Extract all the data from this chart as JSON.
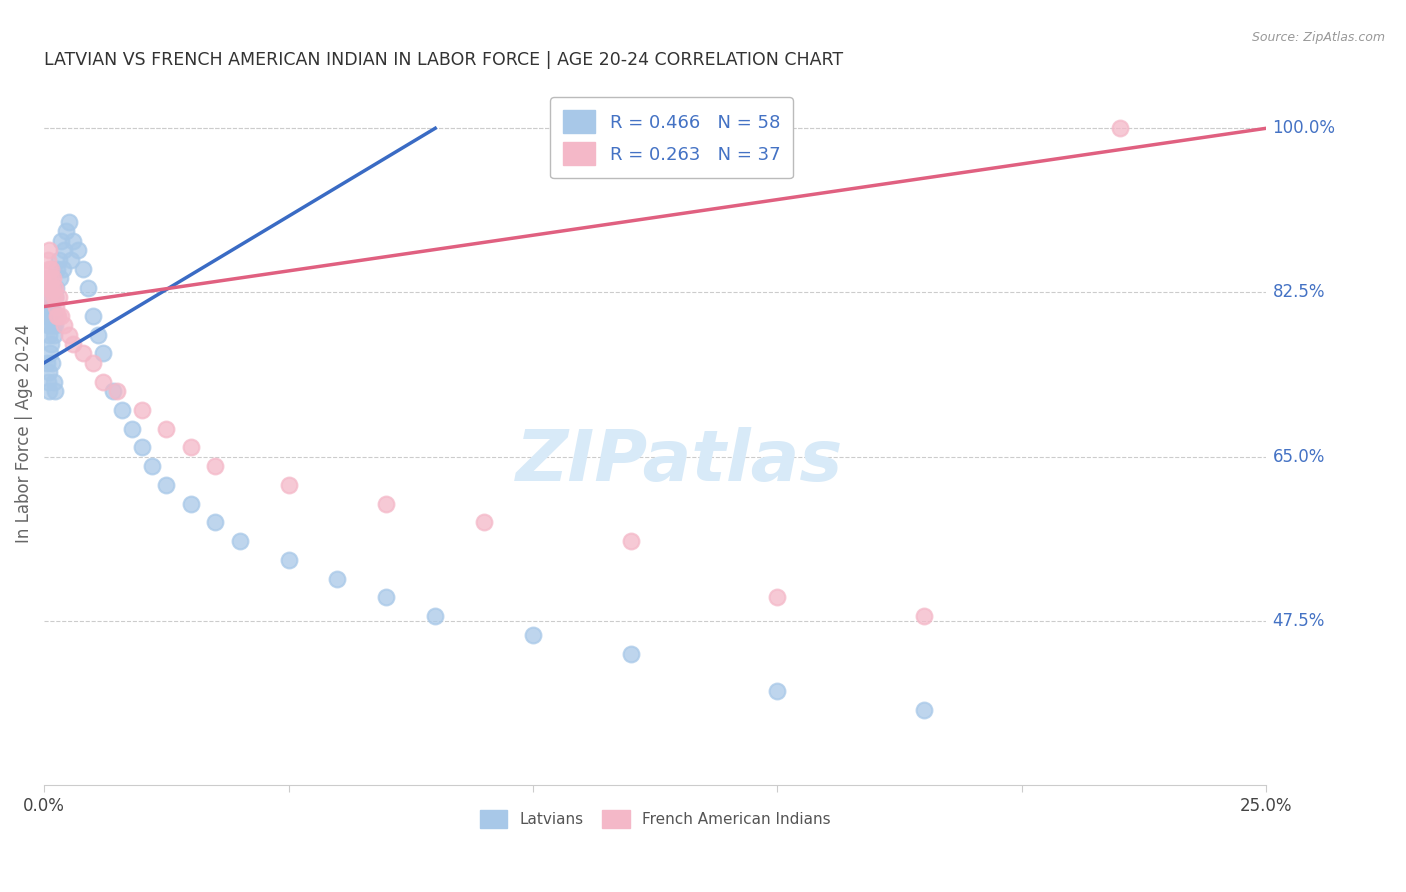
{
  "title": "LATVIAN VS FRENCH AMERICAN INDIAN IN LABOR FORCE | AGE 20-24 CORRELATION CHART",
  "source": "Source: ZipAtlas.com",
  "ylabel": "In Labor Force | Age 20-24",
  "xlim_min": 0.0,
  "xlim_max": 25.0,
  "ylim_min": 30.0,
  "ylim_max": 105.0,
  "ytick_vals": [
    47.5,
    65.0,
    82.5,
    100.0
  ],
  "ytick_labels": [
    "47.5%",
    "65.0%",
    "82.5%",
    "100.0%"
  ],
  "xtick_vals": [
    0.0,
    5.0,
    10.0,
    15.0,
    20.0,
    25.0
  ],
  "xtick_labels": [
    "0.0%",
    "",
    "",
    "",
    "",
    "25.0%"
  ],
  "blue_R": 0.466,
  "blue_N": 58,
  "pink_R": 0.263,
  "pink_N": 37,
  "blue_scatter_color": "#a8c8e8",
  "pink_scatter_color": "#f4b8c8",
  "blue_line_color": "#3a6bc4",
  "pink_line_color": "#e06080",
  "legend_blue_label": "R = 0.466   N = 58",
  "legend_pink_label": "R = 0.263   N = 37",
  "blue_line_x0": 0.0,
  "blue_line_y0": 75.0,
  "blue_line_x1": 8.0,
  "blue_line_y1": 100.0,
  "pink_line_x0": 0.0,
  "pink_line_y0": 81.0,
  "pink_line_x1": 25.0,
  "pink_line_y1": 100.0,
  "latvian_x": [
    0.05,
    0.08,
    0.1,
    0.12,
    0.13,
    0.14,
    0.15,
    0.16,
    0.17,
    0.18,
    0.19,
    0.2,
    0.21,
    0.22,
    0.23,
    0.25,
    0.27,
    0.3,
    0.32,
    0.35,
    0.38,
    0.4,
    0.45,
    0.5,
    0.55,
    0.6,
    0.7,
    0.8,
    0.9,
    1.0,
    1.1,
    1.2,
    1.4,
    1.6,
    1.8,
    2.0,
    2.2,
    2.5,
    3.0,
    3.5,
    4.0,
    5.0,
    6.0,
    7.0,
    8.0,
    10.0,
    12.0,
    15.0,
    18.0,
    0.05,
    0.07,
    0.09,
    0.11,
    0.13,
    0.15,
    0.17,
    0.2,
    0.22
  ],
  "latvian_y": [
    80.0,
    79.0,
    78.0,
    79.0,
    80.0,
    81.0,
    82.0,
    80.0,
    81.0,
    83.0,
    79.0,
    78.0,
    80.0,
    79.0,
    82.0,
    83.0,
    85.0,
    86.0,
    84.0,
    88.0,
    85.0,
    87.0,
    89.0,
    90.0,
    86.0,
    88.0,
    87.0,
    85.0,
    83.0,
    80.0,
    78.0,
    76.0,
    72.0,
    70.0,
    68.0,
    66.0,
    64.0,
    62.0,
    60.0,
    58.0,
    56.0,
    54.0,
    52.0,
    50.0,
    48.0,
    46.0,
    44.0,
    40.0,
    38.0,
    75.0,
    73.0,
    72.0,
    74.0,
    76.0,
    77.0,
    75.0,
    73.0,
    72.0
  ],
  "french_x": [
    0.05,
    0.08,
    0.1,
    0.12,
    0.15,
    0.18,
    0.2,
    0.22,
    0.25,
    0.28,
    0.3,
    0.35,
    0.4,
    0.5,
    0.6,
    0.8,
    1.0,
    1.2,
    1.5,
    2.0,
    2.5,
    3.0,
    3.5,
    5.0,
    7.0,
    9.0,
    12.0,
    15.0,
    18.0,
    22.0,
    0.07,
    0.09,
    0.11,
    0.14,
    0.17,
    0.22,
    0.27
  ],
  "french_y": [
    83.0,
    84.0,
    82.0,
    83.0,
    85.0,
    84.0,
    82.0,
    83.0,
    81.0,
    80.0,
    82.0,
    80.0,
    79.0,
    78.0,
    77.0,
    76.0,
    75.0,
    73.0,
    72.0,
    70.0,
    68.0,
    66.0,
    64.0,
    62.0,
    60.0,
    58.0,
    56.0,
    50.0,
    48.0,
    100.0,
    86.0,
    87.0,
    85.0,
    84.0,
    83.0,
    82.0,
    80.0
  ],
  "watermark_text": "ZIPatlas",
  "watermark_color": "#d8eaf8",
  "background_color": "#ffffff",
  "grid_color": "#cccccc",
  "title_color": "#333333",
  "axis_label_color": "#666666",
  "right_tick_color": "#4472c4",
  "source_color": "#999999"
}
